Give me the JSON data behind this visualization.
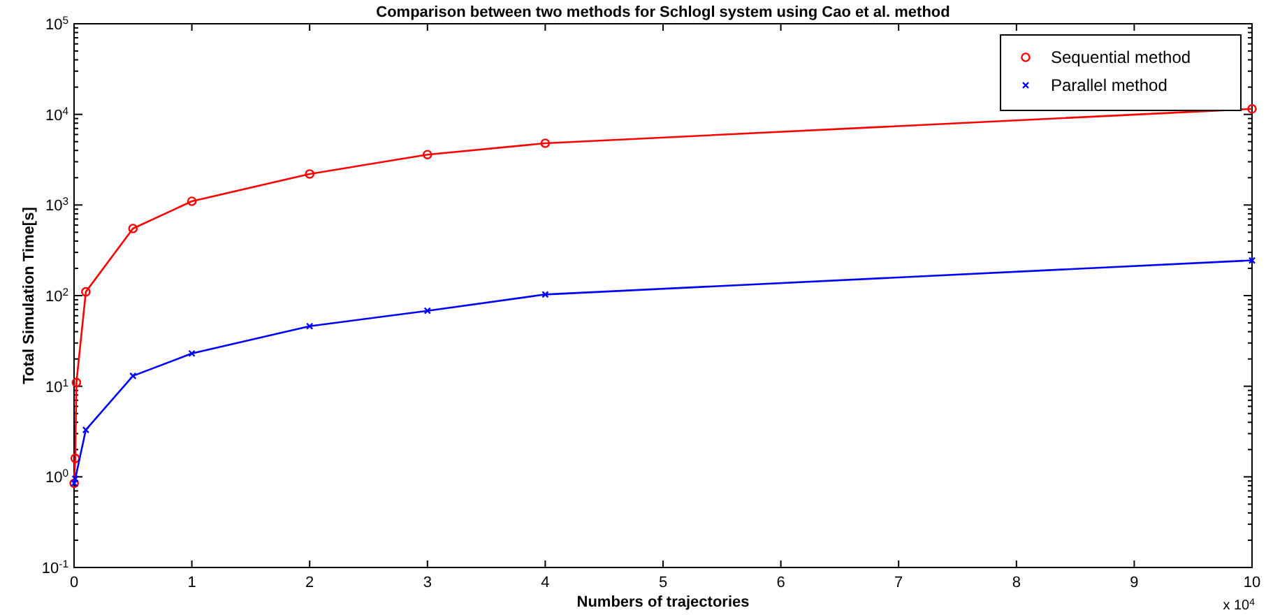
{
  "chart_data": {
    "type": "line",
    "title": "Comparison between two methods for Schlogl system using Cao et al. method",
    "xlabel": "Numbers of trajectories",
    "ylabel": "Total Simulation Time[s]",
    "log": "y",
    "grid": false,
    "legend": "top right",
    "xlim": [
      0,
      10
    ],
    "xticks": [
      0,
      1,
      2,
      3,
      4,
      5,
      6,
      7,
      8,
      9,
      10
    ],
    "ylim": [
      0.1,
      100000
    ],
    "yticks": [
      {
        "value": 0.1,
        "label": "10$^{-1}$"
      },
      {
        "value": 1,
        "label": "10$^{0}$"
      },
      {
        "value": 10,
        "label": "10$^{1}$"
      },
      {
        "value": 100,
        "label": "10$^{2}$"
      },
      {
        "value": 1000,
        "label": "10$^{3}$"
      },
      {
        "value": 10000,
        "label": "10$^{4}$"
      },
      {
        "value": 100000,
        "label": "10$^{5}$"
      }
    ],
    "annotations": [
      "x 10$^{4}$"
    ],
    "series": [
      {
        "name": "Sequential method",
        "color": "#ff0000",
        "marker": "circle",
        "x": [
          0.001,
          0.01,
          0.02,
          0.1,
          0.5,
          1,
          2,
          3,
          4,
          10
        ],
        "values": [
          0.85,
          1.6,
          11,
          110,
          550,
          1100,
          2200,
          3600,
          4800,
          11500
        ]
      },
      {
        "name": "Parallel method",
        "color": "#0000ff",
        "marker": "cross",
        "x": [
          0.001,
          0.01,
          0.1,
          0.5,
          1,
          2,
          3,
          4,
          10
        ],
        "values": [
          0.85,
          0.95,
          3.3,
          13,
          23,
          46,
          68,
          103,
          245
        ]
      }
    ]
  }
}
